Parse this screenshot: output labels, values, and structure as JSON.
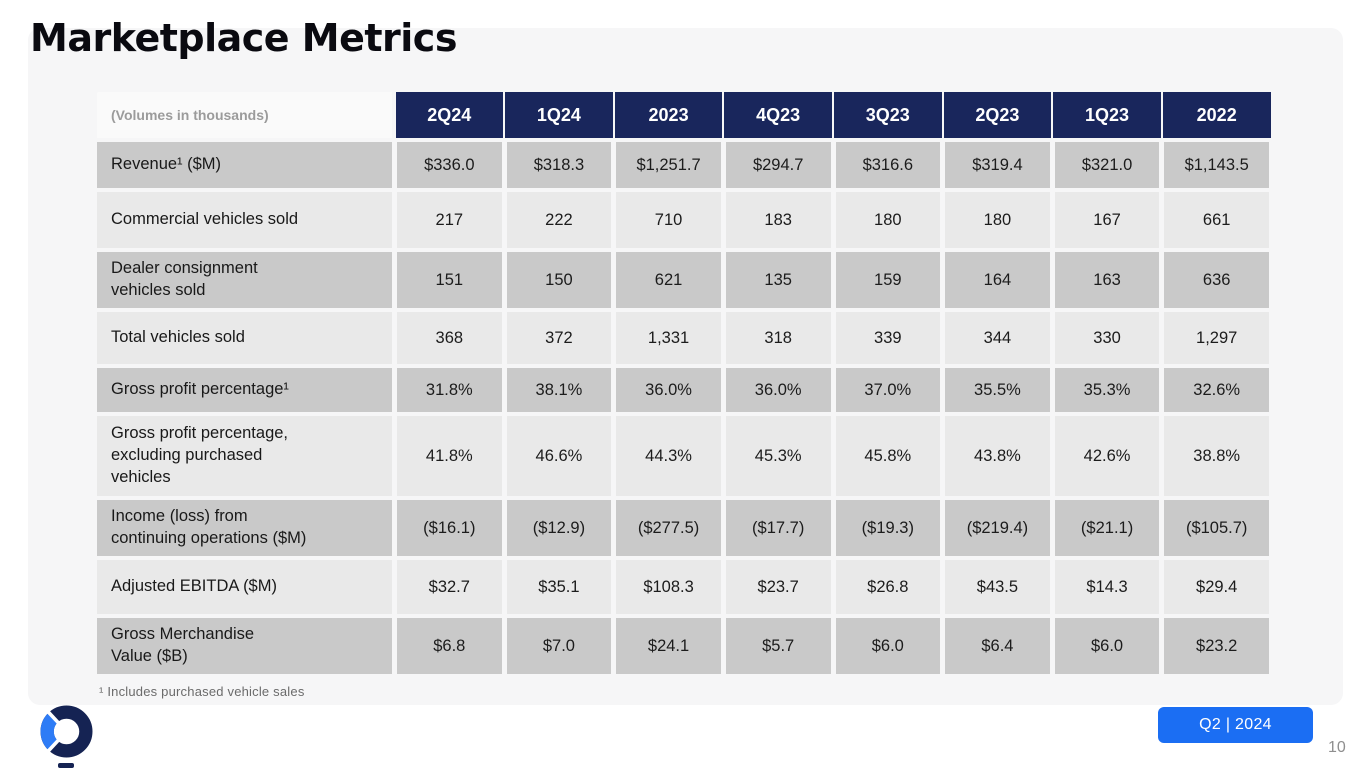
{
  "slide": {
    "title": "Marketplace Metrics",
    "footnote": "¹ Includes purchased vehicle sales",
    "badge_label": "Q2 | 2024",
    "page_number": "10"
  },
  "table": {
    "corner_label": "(Volumes in thousands)",
    "columns": [
      "2Q24",
      "1Q24",
      "2023",
      "4Q23",
      "3Q23",
      "2Q23",
      "1Q23",
      "2022"
    ],
    "rows": [
      {
        "label": "Revenue¹ ($M)",
        "values": [
          "$336.0",
          "$318.3",
          "$1,251.7",
          "$294.7",
          "$316.6",
          "$319.4",
          "$321.0",
          "$1,143.5"
        ]
      },
      {
        "label": "Commercial vehicles sold",
        "values": [
          "217",
          "222",
          "710",
          "183",
          "180",
          "180",
          "167",
          "661"
        ]
      },
      {
        "label": "Dealer consignment\nvehicles sold",
        "values": [
          "151",
          "150",
          "621",
          "135",
          "159",
          "164",
          "163",
          "636"
        ]
      },
      {
        "label": "Total vehicles sold",
        "values": [
          "368",
          "372",
          "1,331",
          "318",
          "339",
          "344",
          "330",
          "1,297"
        ]
      },
      {
        "label": "Gross profit percentage¹",
        "values": [
          "31.8%",
          "38.1%",
          "36.0%",
          "36.0%",
          "37.0%",
          "35.5%",
          "35.3%",
          "32.6%"
        ]
      },
      {
        "label": "Gross profit percentage,\nexcluding purchased\nvehicles",
        "values": [
          "41.8%",
          "46.6%",
          "44.3%",
          "45.3%",
          "45.8%",
          "43.8%",
          "42.6%",
          "38.8%"
        ]
      },
      {
        "label": "Income (loss) from\ncontinuing operations ($M)",
        "values": [
          "($16.1)",
          "($12.9)",
          "($277.5)",
          "($17.7)",
          "($19.3)",
          "($219.4)",
          "($21.1)",
          "($105.7)"
        ]
      },
      {
        "label": "Adjusted EBITDA ($M)",
        "values": [
          "$32.7",
          "$35.1",
          "$108.3",
          "$23.7",
          "$26.8",
          "$43.5",
          "$14.3",
          "$29.4"
        ]
      },
      {
        "label": "Gross Merchandise\nValue ($B)",
        "values": [
          "$6.8",
          "$7.0",
          "$24.1",
          "$5.7",
          "$6.0",
          "$6.4",
          "$6.0",
          "$23.2"
        ]
      }
    ]
  },
  "colors": {
    "header_navy": "#19265c",
    "row_dark": "#c9c9c9",
    "row_light": "#e9e9e9",
    "panel_gray": "#f6f6f7",
    "badge_blue": "#1b6ef3",
    "logo_navy": "#152353",
    "logo_blue": "#2e7cf6"
  }
}
